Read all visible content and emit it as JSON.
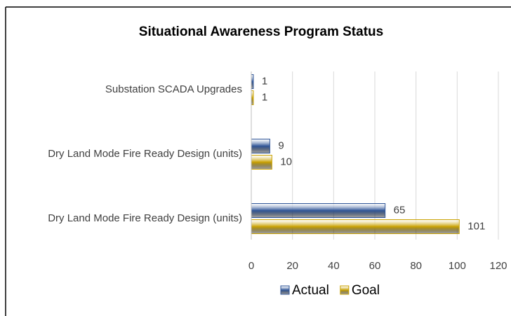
{
  "chart_data": {
    "type": "bar",
    "orientation": "horizontal",
    "title": "Situational Awareness Program Status",
    "categories": [
      "Substation SCADA Upgrades",
      "Dry Land Mode Fire Ready Design (units)",
      "Dry Land Mode Fire Ready Design (units)"
    ],
    "series": [
      {
        "name": "Actual",
        "color": "#2f5597",
        "values": [
          1,
          9,
          65
        ]
      },
      {
        "name": "Goal",
        "color": "#c9a100",
        "values": [
          1,
          10,
          101
        ]
      }
    ],
    "xlim": [
      0,
      120
    ],
    "xticks": [
      0,
      20,
      40,
      60,
      80,
      100,
      120
    ],
    "grid": true,
    "legend": "bottom"
  }
}
